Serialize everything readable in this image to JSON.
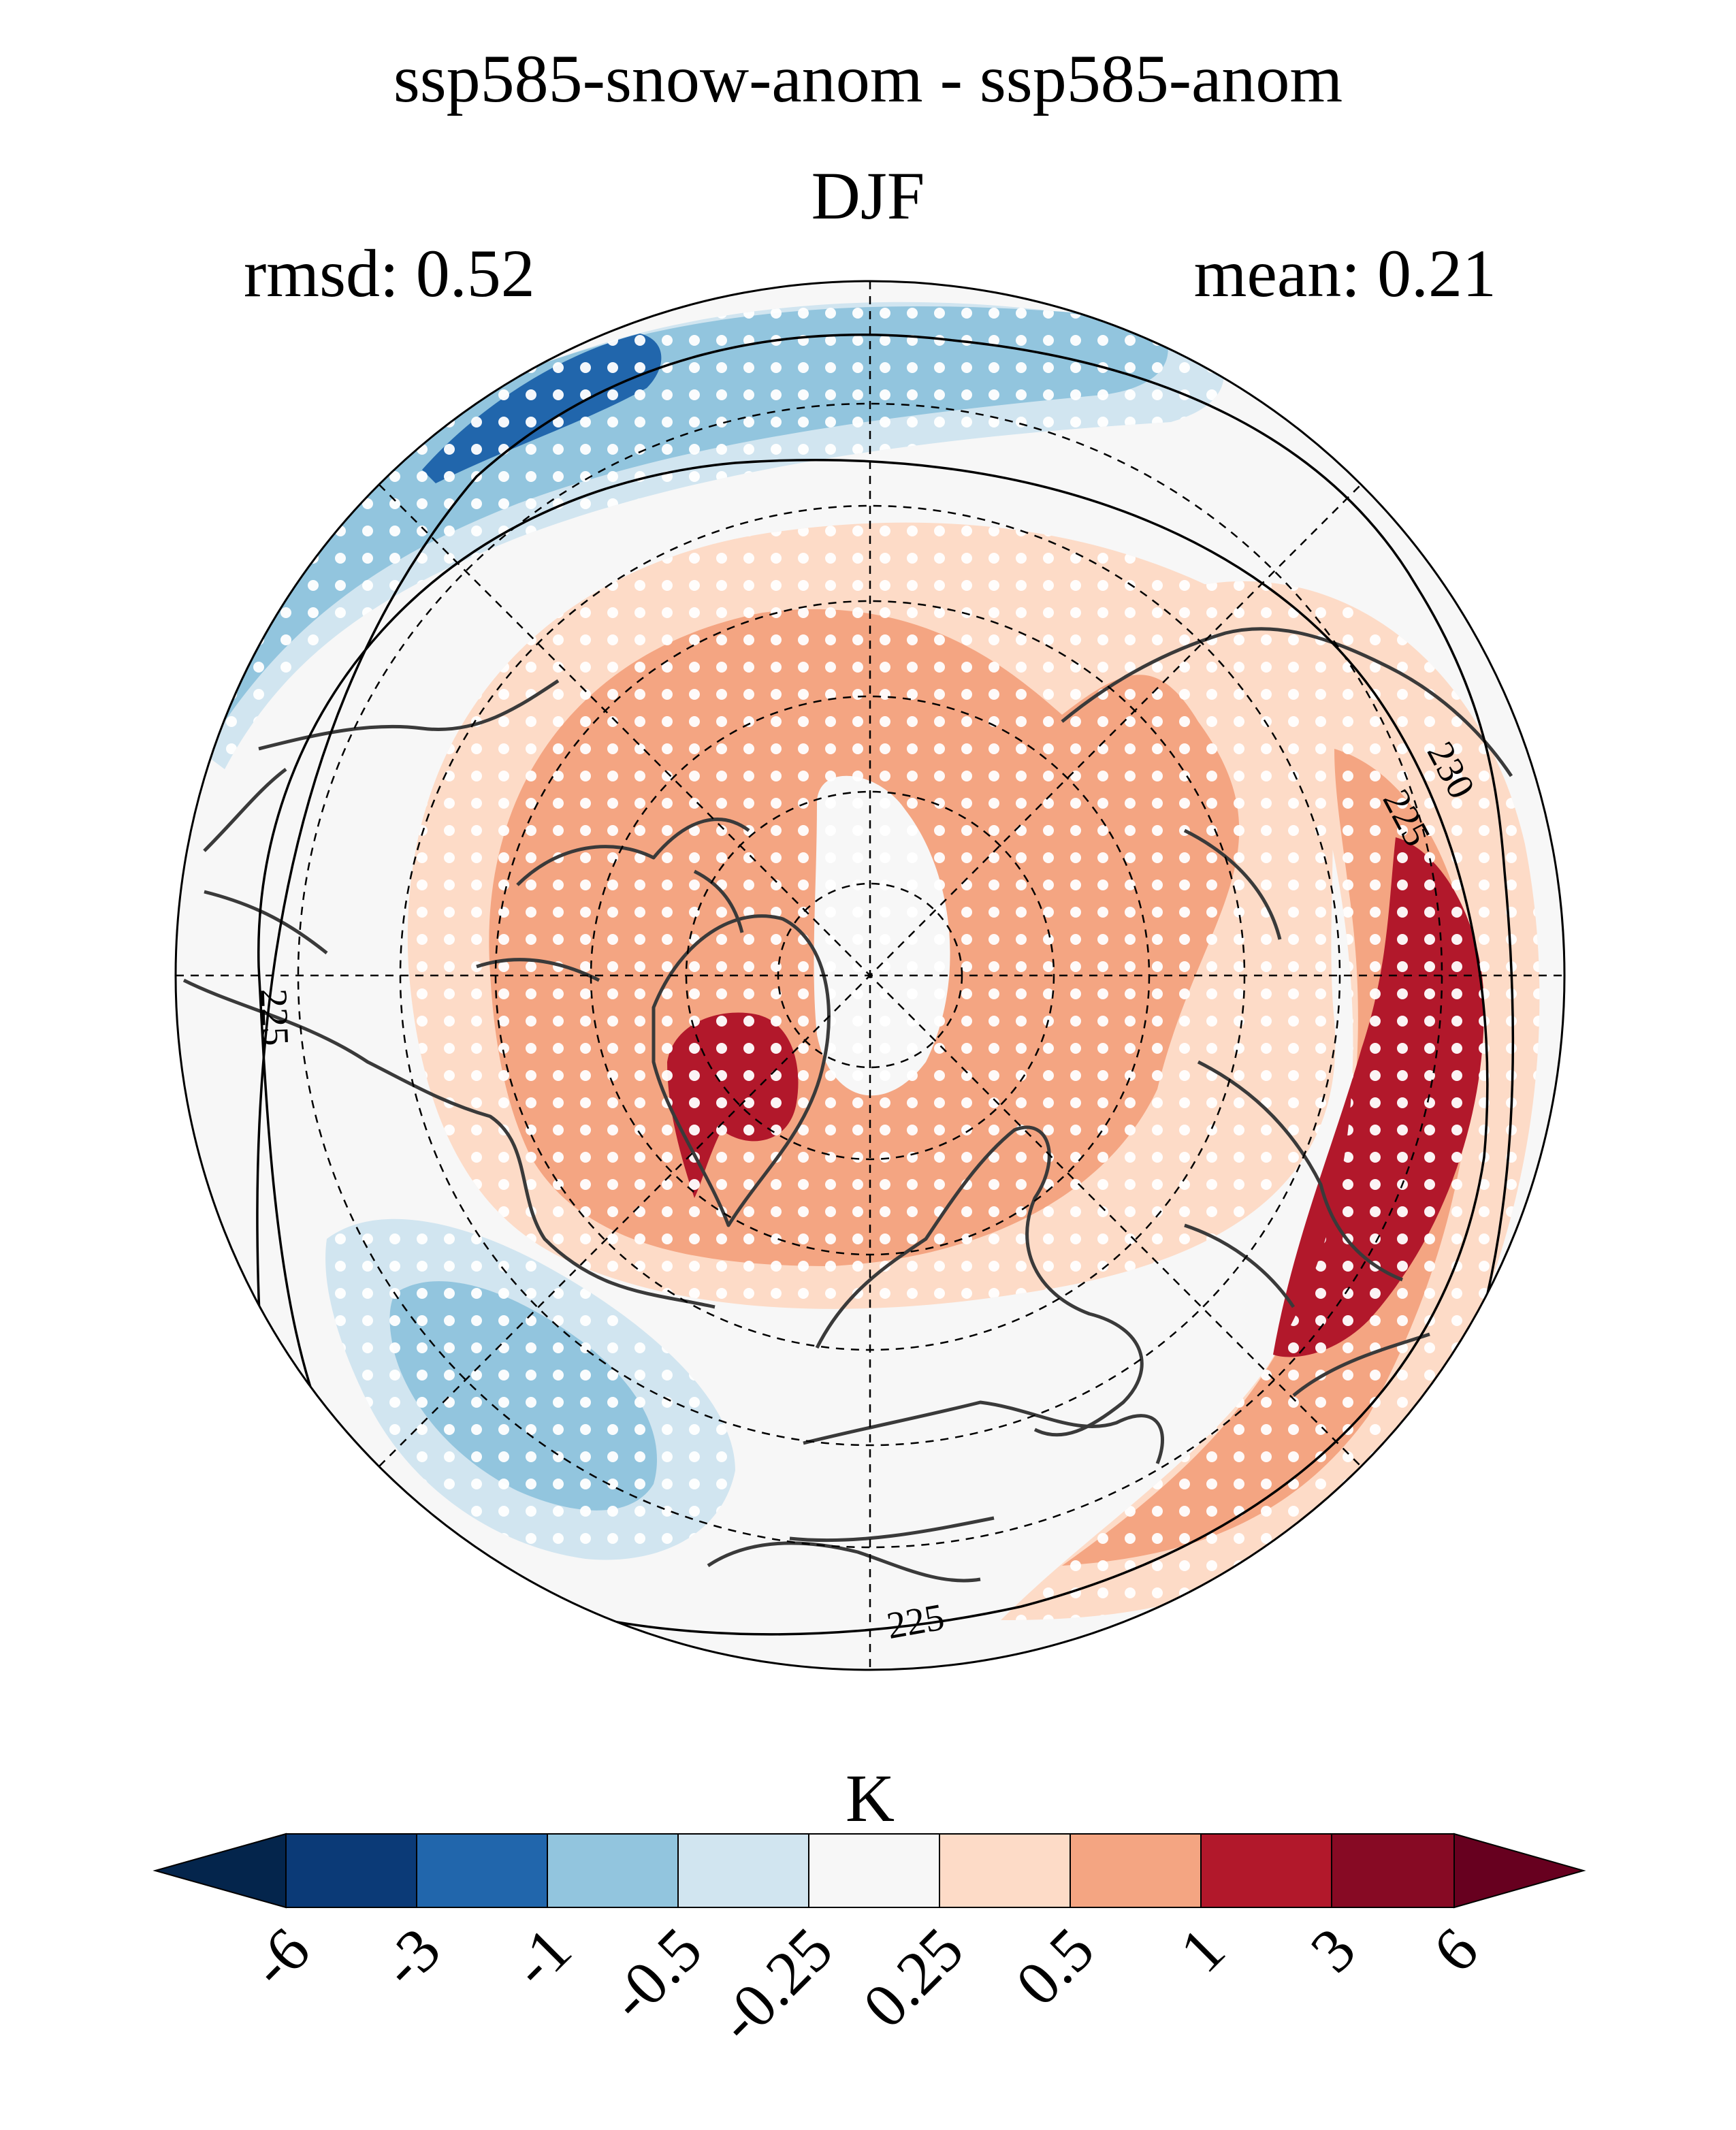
{
  "title_line1": "ssp585-snow-anom - ssp585-anom",
  "title_line2": "DJF",
  "stats": {
    "rmsd_label": "rmsd: 0.52",
    "mean_label": "mean: 0.21"
  },
  "map": {
    "projection": "north-polar-stereographic",
    "central_meridian_at_bottom": "0°",
    "stippling": "white dots over regions that are significant",
    "contour_lines": [
      {
        "value": "225",
        "label_positions": [
          "west",
          "south",
          "east"
        ]
      },
      {
        "value": "230",
        "label_positions": [
          "east"
        ]
      }
    ],
    "regions": [
      {
        "name": "greenland-hotspot",
        "category": "1 to 3"
      },
      {
        "name": "siberia-band",
        "category": "1 to 3"
      },
      {
        "name": "north-pacific",
        "category": "-3 to -1"
      },
      {
        "name": "north-atlantic",
        "category": "-1 to -0.5"
      },
      {
        "name": "arctic-ring",
        "category": "0.5 to 1"
      }
    ]
  },
  "colorbar": {
    "unit_label": "K",
    "extend": "both",
    "colors": [
      "#04254c",
      "#0b3a77",
      "#2166ac",
      "#92c5de",
      "#d1e5f0",
      "#f7f7f7",
      "#fddbc7",
      "#f4a582",
      "#b2182b",
      "#870a24",
      "#67001f"
    ],
    "tick_labels": [
      "-6",
      "-3",
      "-1",
      "-0.5",
      "-0.25",
      "0.25",
      "0.5",
      "1",
      "3",
      "6"
    ]
  }
}
